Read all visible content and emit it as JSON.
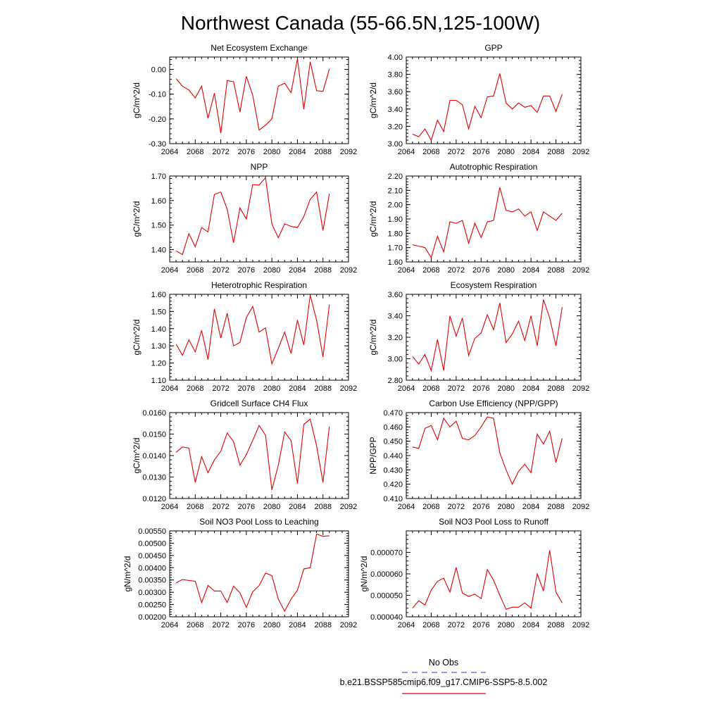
{
  "page": {
    "title": "Northwest Canada (55-66.5N,125-100W)"
  },
  "legend": {
    "entries": [
      {
        "label": "No Obs",
        "color": "#5b5bd6",
        "style": "dashed"
      },
      {
        "label": "b.e21.BSSP585cmip6.f09_g17.CMIP6-SSP5-8.5.002",
        "color": "#e60000",
        "style": "solid"
      }
    ]
  },
  "chart_data": [
    {
      "type": "line",
      "title": "Net Ecosystem Exchange",
      "ylabel": "gC/m^2/d",
      "xlim": [
        2064,
        2092
      ],
      "xticks": [
        "2064",
        "2068",
        "2072",
        "2076",
        "2080",
        "2084",
        "2088",
        "2092"
      ],
      "ylim": [
        -0.3,
        0.05
      ],
      "yticks": [
        "-0.30",
        "-0.20",
        "-0.10",
        "0.00"
      ],
      "series": [
        {
          "color": "#e60000",
          "x": [
            2065,
            2066,
            2067,
            2068,
            2069,
            2070,
            2071,
            2072,
            2073,
            2074,
            2075,
            2076,
            2077,
            2078,
            2079,
            2080,
            2081,
            2082,
            2083,
            2084,
            2085,
            2086,
            2087,
            2088,
            2089
          ],
          "values": [
            -0.037,
            -0.068,
            -0.083,
            -0.115,
            -0.068,
            -0.198,
            -0.096,
            -0.258,
            -0.045,
            -0.05,
            -0.172,
            -0.028,
            -0.104,
            -0.245,
            -0.226,
            -0.2,
            -0.068,
            -0.056,
            -0.094,
            0.043,
            -0.161,
            0.031,
            -0.086,
            -0.089,
            0.002
          ]
        }
      ]
    },
    {
      "type": "line",
      "title": "GPP",
      "ylabel": "gC/m^2/d",
      "xlim": [
        2064,
        2092
      ],
      "xticks": [
        "2064",
        "2068",
        "2072",
        "2076",
        "2080",
        "2084",
        "2088",
        "2092"
      ],
      "ylim": [
        3.0,
        4.0
      ],
      "yticks": [
        "3.00",
        "3.20",
        "3.40",
        "3.60",
        "3.80",
        "4.00"
      ],
      "series": [
        {
          "color": "#e60000",
          "x": [
            2065,
            2066,
            2067,
            2068,
            2069,
            2070,
            2071,
            2072,
            2073,
            2074,
            2075,
            2076,
            2077,
            2078,
            2079,
            2080,
            2081,
            2082,
            2083,
            2084,
            2085,
            2086,
            2087,
            2088,
            2089
          ],
          "values": [
            3.11,
            3.08,
            3.17,
            3.04,
            3.27,
            3.14,
            3.5,
            3.5,
            3.45,
            3.17,
            3.43,
            3.3,
            3.54,
            3.55,
            3.81,
            3.47,
            3.4,
            3.47,
            3.42,
            3.44,
            3.36,
            3.55,
            3.55,
            3.37,
            3.57
          ]
        }
      ]
    },
    {
      "type": "line",
      "title": "NPP",
      "ylabel": "gC/m^2/d",
      "xlim": [
        2064,
        2092
      ],
      "xticks": [
        "2064",
        "2068",
        "2072",
        "2076",
        "2080",
        "2084",
        "2088",
        "2092"
      ],
      "ylim": [
        1.35,
        1.7
      ],
      "yticks": [
        "1.40",
        "1.50",
        "1.60",
        "1.70"
      ],
      "series": [
        {
          "color": "#e60000",
          "x": [
            2065,
            2066,
            2067,
            2068,
            2069,
            2070,
            2071,
            2072,
            2073,
            2074,
            2075,
            2076,
            2077,
            2078,
            2079,
            2080,
            2081,
            2082,
            2083,
            2084,
            2085,
            2086,
            2087,
            2088,
            2089
          ],
          "values": [
            1.395,
            1.38,
            1.465,
            1.412,
            1.49,
            1.472,
            1.625,
            1.635,
            1.565,
            1.428,
            1.57,
            1.525,
            1.665,
            1.663,
            1.693,
            1.505,
            1.448,
            1.505,
            1.495,
            1.49,
            1.535,
            1.605,
            1.635,
            1.478,
            1.628
          ]
        }
      ]
    },
    {
      "type": "line",
      "title": "Autotrophic Respiration",
      "ylabel": "gC/m^2/d",
      "xlim": [
        2064,
        2092
      ],
      "xticks": [
        "2064",
        "2068",
        "2072",
        "2076",
        "2080",
        "2084",
        "2088",
        "2092"
      ],
      "ylim": [
        1.6,
        2.2
      ],
      "yticks": [
        "1.60",
        "1.70",
        "1.80",
        "1.90",
        "2.00",
        "2.10",
        "2.20"
      ],
      "series": [
        {
          "color": "#e60000",
          "x": [
            2065,
            2066,
            2067,
            2068,
            2069,
            2070,
            2071,
            2072,
            2073,
            2074,
            2075,
            2076,
            2077,
            2078,
            2079,
            2080,
            2081,
            2082,
            2083,
            2084,
            2085,
            2086,
            2087,
            2088,
            2089
          ],
          "values": [
            1.72,
            1.71,
            1.7,
            1.63,
            1.78,
            1.67,
            1.88,
            1.87,
            1.89,
            1.73,
            1.87,
            1.77,
            1.88,
            1.89,
            2.12,
            1.96,
            1.95,
            1.97,
            1.92,
            1.95,
            1.82,
            1.95,
            1.92,
            1.89,
            1.94
          ]
        }
      ]
    },
    {
      "type": "line",
      "title": "Heterotrophic Respiration",
      "ylabel": "gC/m^2/d",
      "xlim": [
        2064,
        2092
      ],
      "xticks": [
        "2064",
        "2068",
        "2072",
        "2076",
        "2080",
        "2084",
        "2088",
        "2092"
      ],
      "ylim": [
        1.1,
        1.6
      ],
      "yticks": [
        "1.10",
        "1.20",
        "1.30",
        "1.40",
        "1.50",
        "1.60"
      ],
      "series": [
        {
          "color": "#e60000",
          "x": [
            2065,
            2066,
            2067,
            2068,
            2069,
            2070,
            2071,
            2072,
            2073,
            2074,
            2075,
            2076,
            2077,
            2078,
            2079,
            2080,
            2081,
            2082,
            2083,
            2084,
            2085,
            2086,
            2087,
            2088,
            2089
          ],
          "values": [
            1.31,
            1.245,
            1.335,
            1.265,
            1.39,
            1.22,
            1.515,
            1.345,
            1.49,
            1.3,
            1.32,
            1.465,
            1.53,
            1.38,
            1.405,
            1.195,
            1.285,
            1.38,
            1.255,
            1.45,
            1.305,
            1.595,
            1.45,
            1.235,
            1.54
          ]
        }
      ]
    },
    {
      "type": "line",
      "title": "Ecosystem Respiration",
      "ylabel": "gC/m^2/d",
      "xlim": [
        2064,
        2092
      ],
      "xticks": [
        "2064",
        "2068",
        "2072",
        "2076",
        "2080",
        "2084",
        "2088",
        "2092"
      ],
      "ylim": [
        2.8,
        3.6
      ],
      "yticks": [
        "2.80",
        "3.00",
        "3.20",
        "3.40",
        "3.60"
      ],
      "series": [
        {
          "color": "#e60000",
          "x": [
            2065,
            2066,
            2067,
            2068,
            2069,
            2070,
            2071,
            2072,
            2073,
            2074,
            2075,
            2076,
            2077,
            2078,
            2079,
            2080,
            2081,
            2082,
            2083,
            2084,
            2085,
            2086,
            2087,
            2088,
            2089
          ],
          "values": [
            3.02,
            2.95,
            3.04,
            2.89,
            3.18,
            2.89,
            3.4,
            3.21,
            3.38,
            3.03,
            3.19,
            3.24,
            3.41,
            3.27,
            3.52,
            3.15,
            3.23,
            3.35,
            3.17,
            3.4,
            3.12,
            3.55,
            3.38,
            3.12,
            3.48
          ]
        }
      ]
    },
    {
      "type": "line",
      "title": "Gridcell Surface CH4 Flux",
      "ylabel": "gC/m^2/d",
      "xlim": [
        2064,
        2092
      ],
      "xticks": [
        "2064",
        "2068",
        "2072",
        "2076",
        "2080",
        "2084",
        "2088",
        "2092"
      ],
      "ylim": [
        0.012,
        0.016
      ],
      "yticks": [
        "0.0120",
        "0.0130",
        "0.0140",
        "0.0150",
        "0.0160"
      ],
      "series": [
        {
          "color": "#e60000",
          "x": [
            2065,
            2066,
            2067,
            2068,
            2069,
            2070,
            2071,
            2072,
            2073,
            2074,
            2075,
            2076,
            2077,
            2078,
            2079,
            2080,
            2081,
            2082,
            2083,
            2084,
            2085,
            2086,
            2087,
            2088,
            2089
          ],
          "values": [
            0.01415,
            0.0144,
            0.01435,
            0.01275,
            0.01395,
            0.0132,
            0.0138,
            0.0142,
            0.01505,
            0.01465,
            0.01355,
            0.01405,
            0.0147,
            0.0154,
            0.01495,
            0.0124,
            0.01355,
            0.0151,
            0.0147,
            0.0127,
            0.01545,
            0.0157,
            0.01445,
            0.01275,
            0.01535
          ]
        }
      ]
    },
    {
      "type": "line",
      "title": "Carbon Use Efficiency (NPP/GPP)",
      "ylabel": "NPP/GPP",
      "xlim": [
        2064,
        2092
      ],
      "xticks": [
        "2064",
        "2068",
        "2072",
        "2076",
        "2080",
        "2084",
        "2088",
        "2092"
      ],
      "ylim": [
        0.41,
        0.47
      ],
      "yticks": [
        "0.410",
        "0.420",
        "0.430",
        "0.440",
        "0.450",
        "0.460",
        "0.470"
      ],
      "series": [
        {
          "color": "#e60000",
          "x": [
            2065,
            2066,
            2067,
            2068,
            2069,
            2070,
            2071,
            2072,
            2073,
            2074,
            2075,
            2076,
            2077,
            2078,
            2079,
            2080,
            2081,
            2082,
            2083,
            2084,
            2085,
            2086,
            2087,
            2088,
            2089
          ],
          "values": [
            0.446,
            0.445,
            0.459,
            0.461,
            0.451,
            0.466,
            0.46,
            0.464,
            0.452,
            0.451,
            0.454,
            0.46,
            0.467,
            0.466,
            0.442,
            0.43,
            0.42,
            0.429,
            0.434,
            0.428,
            0.455,
            0.448,
            0.457,
            0.435,
            0.452
          ]
        }
      ]
    },
    {
      "type": "line",
      "title": "Soil NO3 Pool Loss to Leaching",
      "ylabel": "gN/m^2/d",
      "xlim": [
        2064,
        2092
      ],
      "xticks": [
        "2064",
        "2068",
        "2072",
        "2076",
        "2080",
        "2084",
        "2088",
        "2092"
      ],
      "ylim": [
        0.002,
        0.0055
      ],
      "yticks": [
        "0.00200",
        "0.00250",
        "0.00300",
        "0.00350",
        "0.00400",
        "0.00450",
        "0.00500",
        "0.00550"
      ],
      "series": [
        {
          "color": "#e60000",
          "x": [
            2065,
            2066,
            2067,
            2068,
            2069,
            2070,
            2071,
            2072,
            2073,
            2074,
            2075,
            2076,
            2077,
            2078,
            2079,
            2080,
            2081,
            2082,
            2083,
            2084,
            2085,
            2086,
            2087,
            2088,
            2089
          ],
          "values": [
            0.00338,
            0.00352,
            0.00348,
            0.00345,
            0.00258,
            0.00328,
            0.00305,
            0.00305,
            0.00258,
            0.00325,
            0.00298,
            0.00238,
            0.00302,
            0.00327,
            0.00378,
            0.00368,
            0.00272,
            0.00223,
            0.00272,
            0.00308,
            0.00395,
            0.004,
            0.00537,
            0.00528,
            0.0053
          ]
        }
      ]
    },
    {
      "type": "line",
      "title": "Soil NO3 Pool Loss to Runoff",
      "ylabel": "gN/m^2/d",
      "xlim": [
        2064,
        2092
      ],
      "xticks": [
        "2064",
        "2068",
        "2072",
        "2076",
        "2080",
        "2084",
        "2088",
        "2092"
      ],
      "ylim": [
        4e-05,
        8e-05
      ],
      "yticks": [
        "0.000040",
        "0.000050",
        "0.000060",
        "0.000070"
      ],
      "series": [
        {
          "color": "#e60000",
          "x": [
            2065,
            2066,
            2067,
            2068,
            2069,
            2070,
            2071,
            2072,
            2073,
            2074,
            2075,
            2076,
            2077,
            2078,
            2079,
            2080,
            2081,
            2082,
            2083,
            2084,
            2085,
            2086,
            2087,
            2088,
            2089
          ],
          "values": [
            4.4e-05,
            4.75e-05,
            4.55e-05,
            5.25e-05,
            5.65e-05,
            5.8e-05,
            5.15e-05,
            6.3e-05,
            5.1e-05,
            4.95e-05,
            5.05e-05,
            4.85e-05,
            6.2e-05,
            5.7e-05,
            5e-05,
            4.35e-05,
            4.45e-05,
            4.45e-05,
            4.65e-05,
            4.4e-05,
            6e-05,
            5.2e-05,
            7.1e-05,
            5.15e-05,
            4.65e-05
          ]
        }
      ]
    }
  ]
}
